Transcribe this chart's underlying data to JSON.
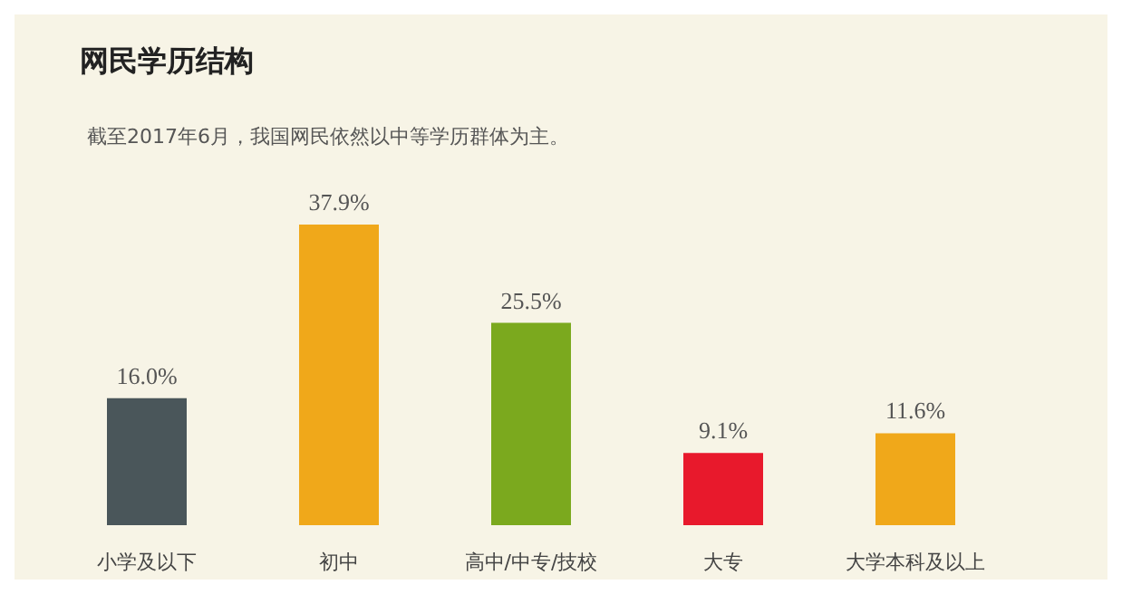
{
  "chart_data": {
    "type": "bar",
    "title": "网民学历结构",
    "subtitle": "截至2017年6月，我国网民依然以中等学历群体为主。",
    "categories": [
      "小学及以下",
      "初中",
      "高中/中专/技校",
      "大专",
      "大学本科及以上"
    ],
    "values": [
      16.0,
      37.9,
      25.5,
      9.1,
      11.6
    ],
    "colors": [
      "#4a565a",
      "#f0a81a",
      "#7ba91e",
      "#e8192c",
      "#f0a81a"
    ],
    "value_labels": [
      "16.0%",
      "37.9%",
      "25.5%",
      "9.1%",
      "11.6%"
    ],
    "grid": false,
    "legend": false
  }
}
